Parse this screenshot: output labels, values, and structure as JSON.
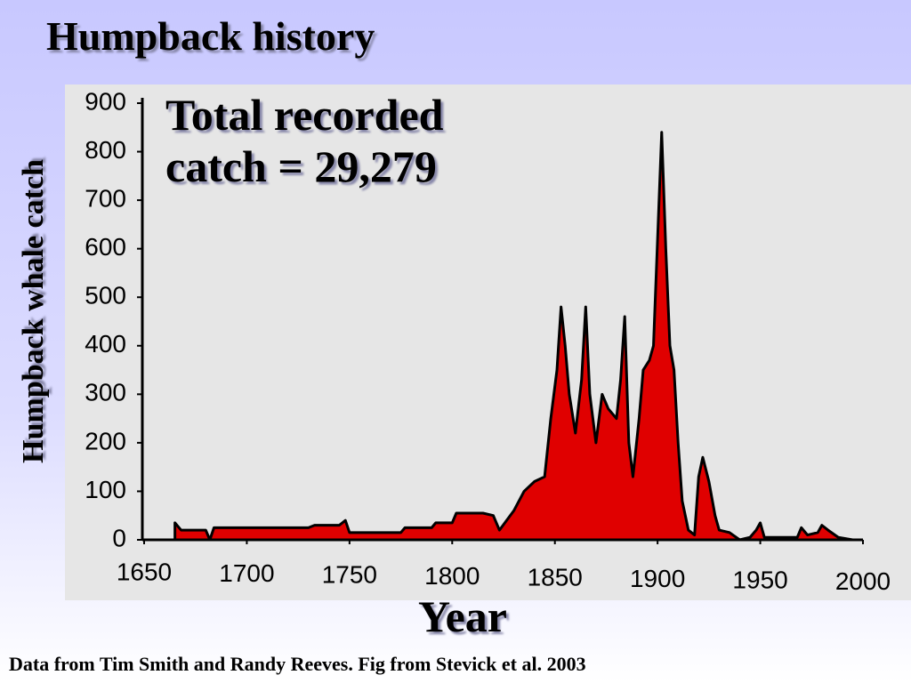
{
  "chart_data": {
    "type": "area",
    "title": "Humpback history",
    "annotation": "Total recorded catch = 29,279",
    "x_label": "Year",
    "y_label": "Humpback whale catch",
    "caption": "Data from Tim Smith and Randy Reeves. Fig from Stevick et al. 2003",
    "xlim": [
      1650,
      2000
    ],
    "ylim": [
      0,
      900
    ],
    "xticks": [
      1650,
      1700,
      1750,
      1800,
      1850,
      1900,
      1950,
      2000
    ],
    "yticks": [
      0,
      100,
      200,
      300,
      400,
      500,
      600,
      700,
      800,
      900
    ],
    "series": [
      {
        "color": "#e00000",
        "x": [
          1665,
          1668,
          1680,
          1682,
          1684,
          1700,
          1730,
          1733,
          1745,
          1748,
          1750,
          1775,
          1777,
          1790,
          1792,
          1800,
          1802,
          1815,
          1820,
          1823,
          1830,
          1835,
          1840,
          1845,
          1848,
          1851,
          1853,
          1855,
          1857,
          1860,
          1863,
          1865,
          1867,
          1870,
          1873,
          1876,
          1880,
          1882,
          1884,
          1886,
          1888,
          1891,
          1893,
          1896,
          1898,
          1900,
          1902,
          1904,
          1906,
          1908,
          1910,
          1912,
          1915,
          1918,
          1920,
          1922,
          1925,
          1928,
          1930,
          1935,
          1940,
          1945,
          1948,
          1950,
          1952,
          1960,
          1968,
          1970,
          1973,
          1978,
          1980,
          1983,
          1988,
          1995
        ],
        "values": [
          35,
          20,
          20,
          0,
          25,
          25,
          25,
          30,
          30,
          40,
          15,
          15,
          25,
          25,
          35,
          35,
          55,
          55,
          50,
          20,
          60,
          100,
          120,
          130,
          250,
          350,
          480,
          400,
          300,
          220,
          330,
          480,
          300,
          200,
          300,
          270,
          250,
          330,
          460,
          200,
          130,
          250,
          350,
          370,
          400,
          620,
          840,
          600,
          400,
          350,
          200,
          80,
          20,
          10,
          130,
          170,
          120,
          50,
          20,
          15,
          0,
          5,
          20,
          35,
          5,
          5,
          5,
          25,
          10,
          15,
          30,
          20,
          5,
          0
        ]
      }
    ]
  }
}
